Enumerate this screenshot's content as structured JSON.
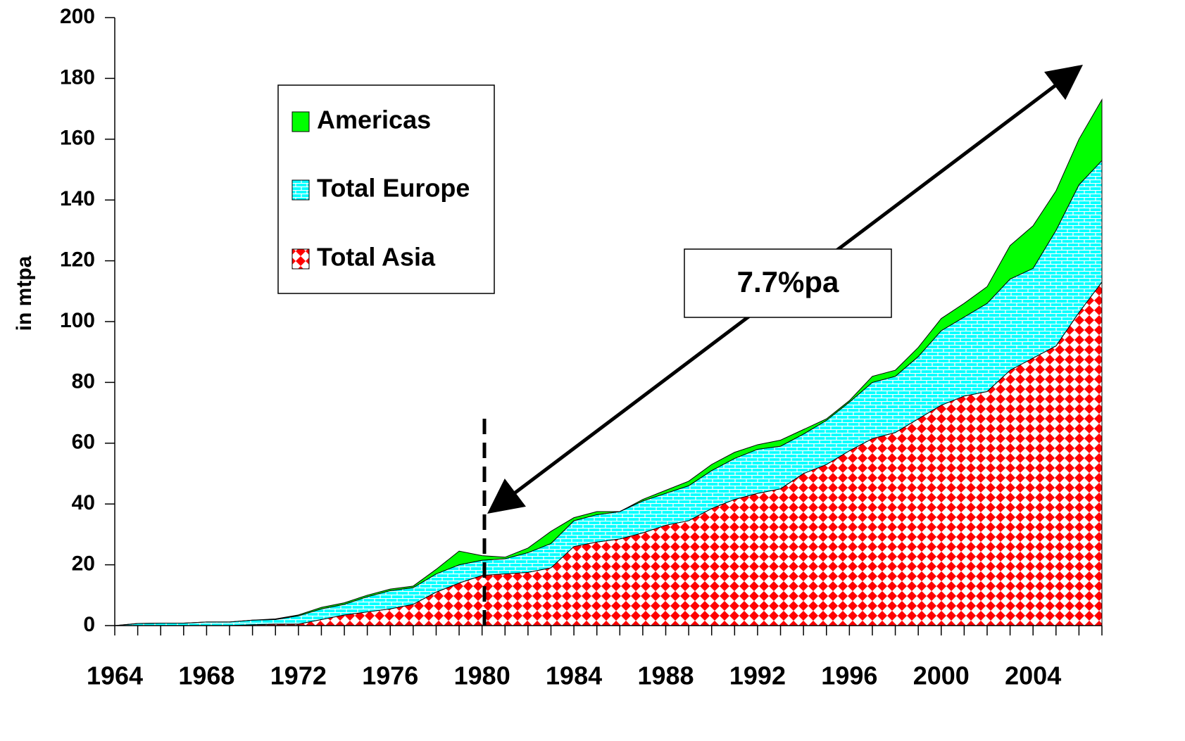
{
  "chart_data": {
    "type": "stacked_area",
    "y_label": "in mtpa",
    "annotation": "7.7%pa",
    "x": [
      1964,
      1965,
      1966,
      1967,
      1968,
      1969,
      1970,
      1971,
      1972,
      1973,
      1974,
      1975,
      1976,
      1977,
      1978,
      1979,
      1980,
      1981,
      1982,
      1983,
      1984,
      1985,
      1986,
      1987,
      1988,
      1989,
      1990,
      1991,
      1992,
      1993,
      1994,
      1995,
      1996,
      1997,
      1998,
      1999,
      2000,
      2001,
      2002,
      2003,
      2004,
      2005,
      2006,
      2007
    ],
    "series": [
      {
        "name": "Total Asia",
        "color": "#ff0000",
        "values": [
          0,
          0,
          0,
          0,
          0,
          0,
          0.3,
          0.5,
          0.5,
          2,
          3.5,
          4.5,
          5.5,
          7,
          11,
          14,
          16.5,
          17,
          17.5,
          19,
          26,
          27.5,
          28.5,
          30.5,
          33,
          34.5,
          38.5,
          41.5,
          43.5,
          45,
          50,
          53,
          57.5,
          61.5,
          63.5,
          68,
          72.5,
          75.5,
          77,
          84,
          88,
          92,
          103,
          113
        ]
      },
      {
        "name": "Total Europe",
        "color": "#00ffff",
        "values": [
          0,
          0.7,
          0.8,
          0.8,
          1.2,
          1.2,
          1.5,
          1.5,
          2.7,
          3.5,
          3.5,
          5,
          6,
          5.5,
          6,
          6,
          5,
          5,
          6.5,
          8,
          8.5,
          9,
          9,
          10.5,
          10.5,
          11.5,
          12.5,
          13.5,
          14.5,
          14,
          13,
          14.5,
          16,
          18.5,
          18.5,
          20.5,
          24.5,
          26,
          29,
          30,
          29.5,
          38,
          42,
          40
        ]
      },
      {
        "name": "Americas",
        "color": "#00ff00",
        "values": [
          0,
          0,
          0,
          0,
          0,
          0,
          0,
          0.2,
          0.3,
          0.5,
          0.5,
          0.5,
          0.5,
          0.5,
          1.5,
          4.5,
          1.5,
          0.5,
          1.5,
          4,
          1,
          1,
          0,
          0.5,
          1,
          1.5,
          2,
          2,
          1.5,
          2,
          1.5,
          0.5,
          0.5,
          2,
          2,
          3,
          4,
          4.5,
          5.5,
          11,
          14,
          13,
          15,
          20
        ]
      }
    ],
    "xlim": [
      1964,
      2007
    ],
    "xticks": [
      1964,
      1968,
      1972,
      1976,
      1980,
      1984,
      1988,
      1992,
      1996,
      2000,
      2004
    ],
    "ylim": [
      0,
      200
    ],
    "yticks": [
      0,
      20,
      40,
      60,
      80,
      100,
      120,
      140,
      160,
      180,
      200
    ]
  }
}
